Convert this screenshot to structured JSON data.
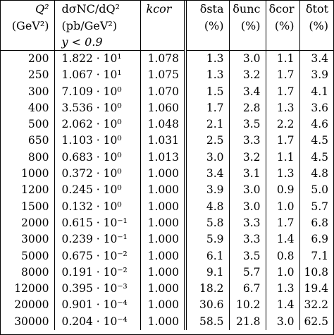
{
  "header": {
    "q2": {
      "line1": "Q²",
      "line2": "(GeV²)"
    },
    "xsec": {
      "line1": "dσNC/dQ²",
      "line2": "(pb/GeV²)",
      "line3": "y < 0.9"
    },
    "kcor": "kcor",
    "dsta": {
      "line1": "δsta",
      "line2": "(%)"
    },
    "dunc": {
      "line1": "δunc",
      "line2": "(%)"
    },
    "dcor": {
      "line1": "δcor",
      "line2": "(%)"
    },
    "dtot": {
      "line1": "δtot",
      "line2": "(%)"
    }
  },
  "rows": [
    {
      "q2": "200",
      "xsec": "1.822 · 10¹",
      "kcor": "1.078",
      "dsta": "1.3",
      "dunc": "3.0",
      "dcor": "1.1",
      "dtot": "3.4"
    },
    {
      "q2": "250",
      "xsec": "1.067 · 10¹",
      "kcor": "1.075",
      "dsta": "1.3",
      "dunc": "3.2",
      "dcor": "1.7",
      "dtot": "3.9"
    },
    {
      "q2": "300",
      "xsec": "7.109 · 10⁰",
      "kcor": "1.070",
      "dsta": "1.5",
      "dunc": "3.4",
      "dcor": "1.7",
      "dtot": "4.1"
    },
    {
      "q2": "400",
      "xsec": "3.536 · 10⁰",
      "kcor": "1.060",
      "dsta": "1.7",
      "dunc": "2.8",
      "dcor": "1.3",
      "dtot": "3.6"
    },
    {
      "q2": "500",
      "xsec": "2.062 · 10⁰",
      "kcor": "1.048",
      "dsta": "2.1",
      "dunc": "3.5",
      "dcor": "2.2",
      "dtot": "4.6"
    },
    {
      "q2": "650",
      "xsec": "1.103 · 10⁰",
      "kcor": "1.031",
      "dsta": "2.5",
      "dunc": "3.3",
      "dcor": "1.7",
      "dtot": "4.5"
    },
    {
      "q2": "800",
      "xsec": "0.683 · 10⁰",
      "kcor": "1.013",
      "dsta": "3.0",
      "dunc": "3.2",
      "dcor": "1.1",
      "dtot": "4.5"
    },
    {
      "q2": "1000",
      "xsec": "0.372 · 10⁰",
      "kcor": "1.000",
      "dsta": "3.4",
      "dunc": "3.1",
      "dcor": "1.3",
      "dtot": "4.8"
    },
    {
      "q2": "1200",
      "xsec": "0.245 · 10⁰",
      "kcor": "1.000",
      "dsta": "3.9",
      "dunc": "3.0",
      "dcor": "0.9",
      "dtot": "5.0"
    },
    {
      "q2": "1500",
      "xsec": "0.132 · 10⁰",
      "kcor": "1.000",
      "dsta": "4.8",
      "dunc": "3.0",
      "dcor": "1.0",
      "dtot": "5.7"
    },
    {
      "q2": "2000",
      "xsec": "0.615 · 10⁻¹",
      "kcor": "1.000",
      "dsta": "5.8",
      "dunc": "3.3",
      "dcor": "1.7",
      "dtot": "6.8"
    },
    {
      "q2": "3000",
      "xsec": "0.239 · 10⁻¹",
      "kcor": "1.000",
      "dsta": "5.9",
      "dunc": "3.3",
      "dcor": "1.4",
      "dtot": "6.9"
    },
    {
      "q2": "5000",
      "xsec": "0.675 · 10⁻²",
      "kcor": "1.000",
      "dsta": "6.1",
      "dunc": "3.5",
      "dcor": "0.8",
      "dtot": "7.1"
    },
    {
      "q2": "8000",
      "xsec": "0.191 · 10⁻²",
      "kcor": "1.000",
      "dsta": "9.1",
      "dunc": "5.7",
      "dcor": "1.0",
      "dtot": "10.8"
    },
    {
      "q2": "12000",
      "xsec": "0.395 · 10⁻³",
      "kcor": "1.000",
      "dsta": "18.2",
      "dunc": "6.7",
      "dcor": "1.3",
      "dtot": "19.4"
    },
    {
      "q2": "20000",
      "xsec": "0.901 · 10⁻⁴",
      "kcor": "1.000",
      "dsta": "30.6",
      "dunc": "10.2",
      "dcor": "1.4",
      "dtot": "32.2"
    },
    {
      "q2": "30000",
      "xsec": "0.204 · 10⁻⁴",
      "kcor": "1.000",
      "dsta": "58.5",
      "dunc": "21.8",
      "dcor": "3.0",
      "dtot": "62.5"
    }
  ]
}
